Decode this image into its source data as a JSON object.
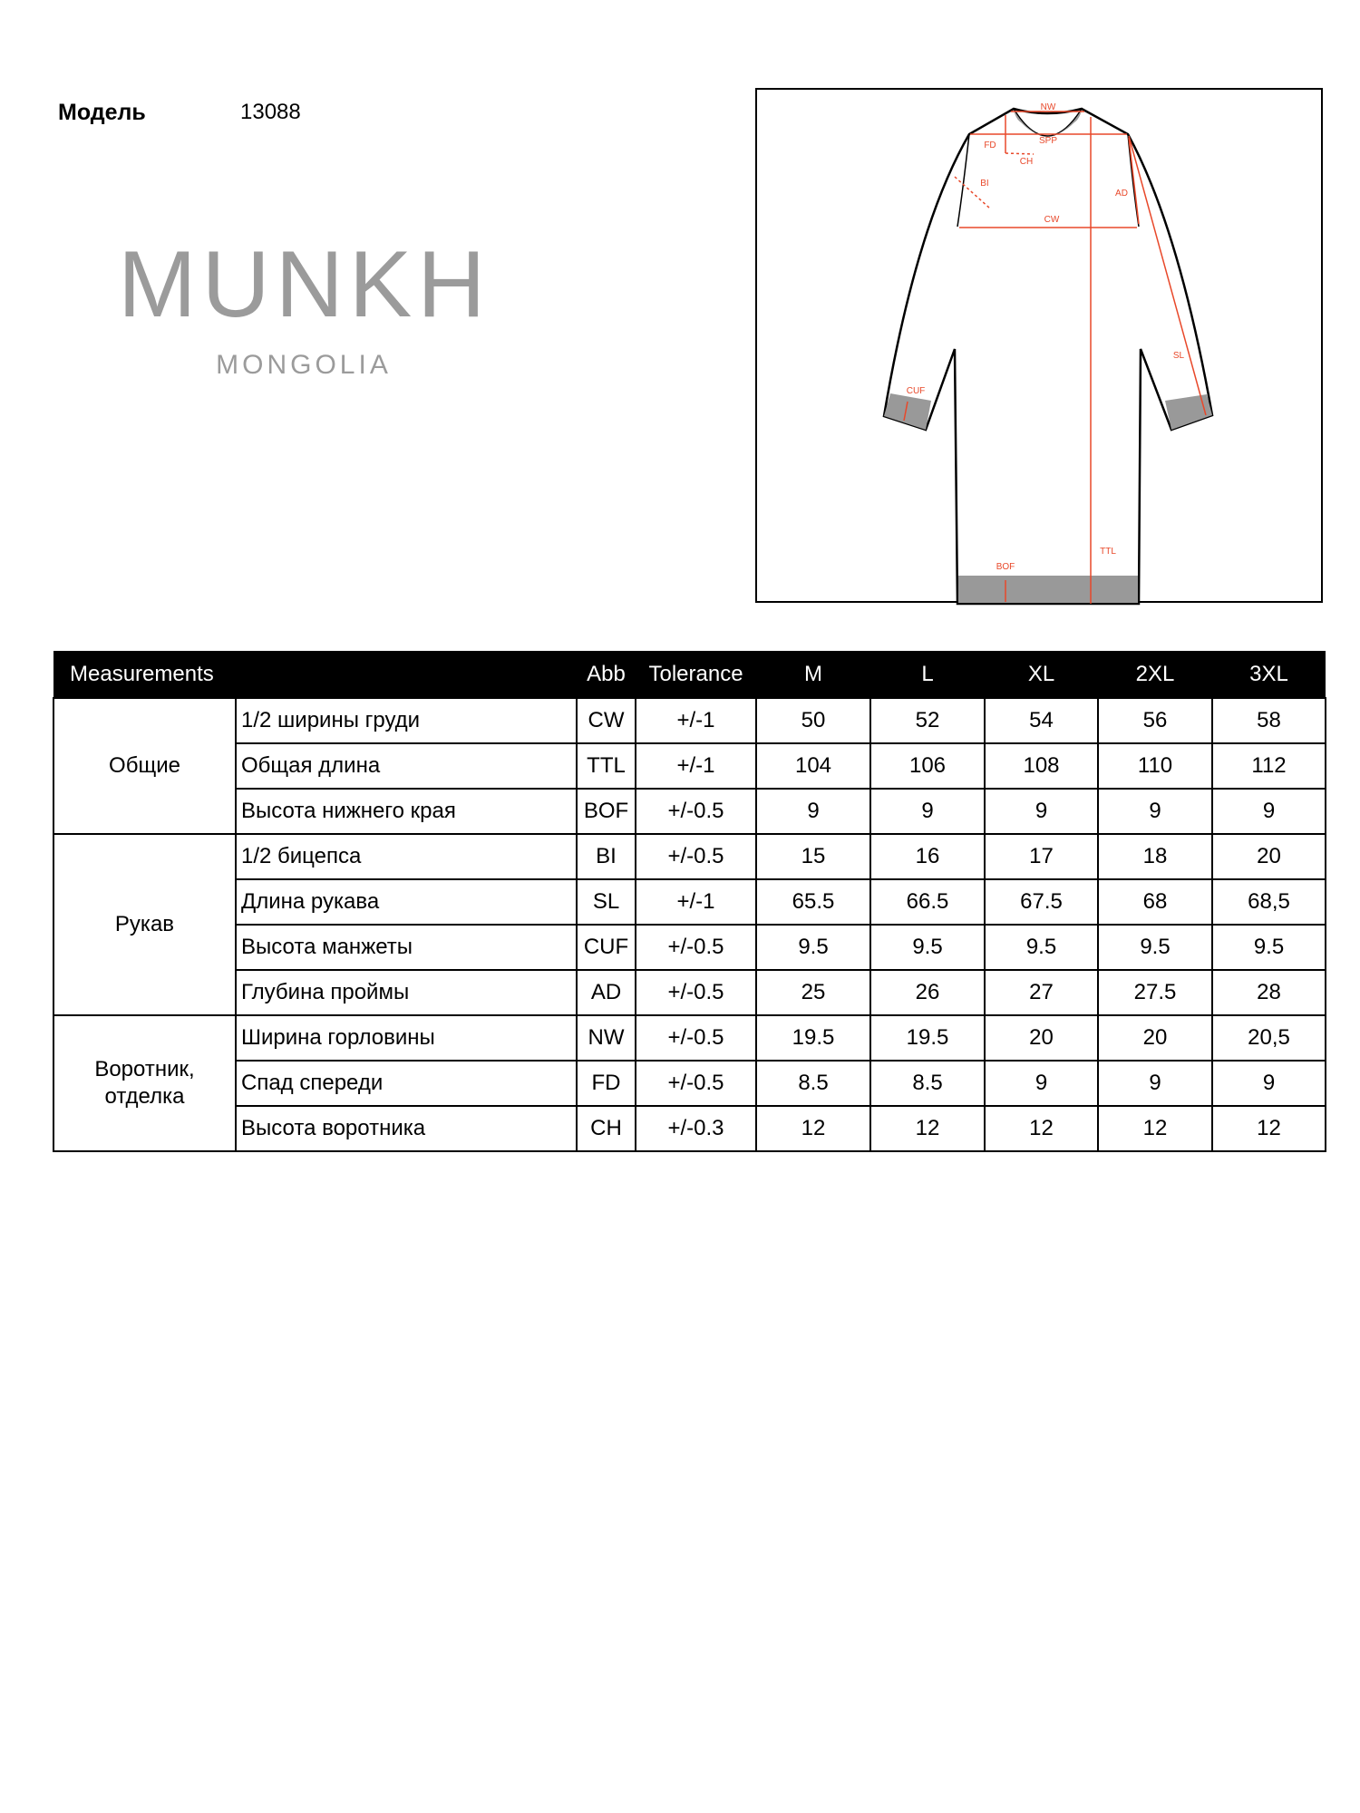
{
  "header": {
    "model_label": "Модель",
    "model_number": "13088"
  },
  "logo": {
    "main": "MUNKH",
    "sub": "MONGOLIA"
  },
  "diagram": {
    "labels": {
      "NW": "NW",
      "SPP": "SPP",
      "FD": "FD",
      "CH": "CH",
      "BI": "BI",
      "AD": "AD",
      "CW": "CW",
      "SL": "SL",
      "CUF": "CUF",
      "BOF": "BOF",
      "TTL": "TTL"
    },
    "dimension_color": "#e8482a"
  },
  "table": {
    "headers": [
      "Measurements",
      "Abb",
      "Tolerance",
      "M",
      "L",
      "XL",
      "2XL",
      "3XL"
    ],
    "groups": [
      {
        "name": "Общие",
        "rows": [
          {
            "name": "1/2 ширины груди",
            "abb": "CW",
            "tol": "+/-1",
            "values": [
              "50",
              "52",
              "54",
              "56",
              "58"
            ]
          },
          {
            "name": "Общая длина",
            "abb": "TTL",
            "tol": "+/-1",
            "values": [
              "104",
              "106",
              "108",
              "110",
              "112"
            ]
          },
          {
            "name": "Высота нижнего края",
            "abb": "BOF",
            "tol": "+/-0.5",
            "values": [
              "9",
              "9",
              "9",
              "9",
              "9"
            ]
          }
        ]
      },
      {
        "name": "Рукав",
        "rows": [
          {
            "name": "1/2 бицепса",
            "abb": "BI",
            "tol": "+/-0.5",
            "values": [
              "15",
              "16",
              "17",
              "18",
              "20"
            ]
          },
          {
            "name": "Длина рукава",
            "abb": "SL",
            "tol": "+/-1",
            "values": [
              "65.5",
              "66.5",
              "67.5",
              "68",
              "68,5"
            ]
          },
          {
            "name": "Высота манжеты",
            "abb": "CUF",
            "tol": "+/-0.5",
            "values": [
              "9.5",
              "9.5",
              "9.5",
              "9.5",
              "9.5"
            ]
          },
          {
            "name": "Глубина проймы",
            "abb": "AD",
            "tol": "+/-0.5",
            "values": [
              "25",
              "26",
              "27",
              "27.5",
              "28"
            ]
          }
        ]
      },
      {
        "name": "Воротник, отделка",
        "rows": [
          {
            "name": "Ширина горловины",
            "abb": "NW",
            "tol": "+/-0.5",
            "values": [
              "19.5",
              "19.5",
              "20",
              "20",
              "20,5"
            ]
          },
          {
            "name": "Спад спереди",
            "abb": "FD",
            "tol": "+/-0.5",
            "values": [
              "8.5",
              "8.5",
              "9",
              "9",
              "9"
            ]
          },
          {
            "name": "Высота воротника",
            "abb": "CH",
            "tol": "+/-0.3",
            "values": [
              "12",
              "12",
              "12",
              "12",
              "12"
            ]
          }
        ]
      }
    ]
  }
}
